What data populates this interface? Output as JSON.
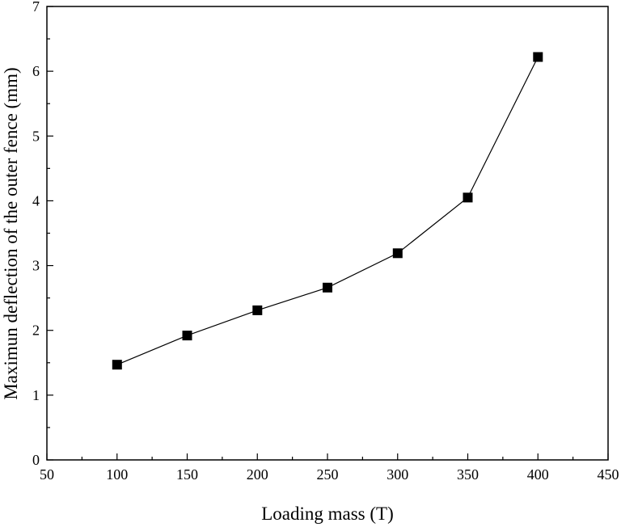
{
  "chart_data": {
    "type": "line",
    "title": "",
    "xlabel": "Loading mass (T)",
    "ylabel": "Maximun deflection of the outer fence (mm)",
    "xlim": [
      50,
      450
    ],
    "ylim": [
      0,
      7
    ],
    "x_ticks": [
      "50",
      "100",
      "150",
      "200",
      "250",
      "300",
      "350",
      "400",
      "450"
    ],
    "y_ticks": [
      "0",
      "1",
      "2",
      "3",
      "4",
      "5",
      "6",
      "7"
    ],
    "grid": false,
    "legend": "none",
    "series": [
      {
        "marker": "square",
        "color": "#000000",
        "x": [
          100,
          150,
          200,
          250,
          300,
          350,
          400
        ],
        "y": [
          1.47,
          1.92,
          2.31,
          2.66,
          3.19,
          4.05,
          6.22
        ]
      }
    ]
  }
}
